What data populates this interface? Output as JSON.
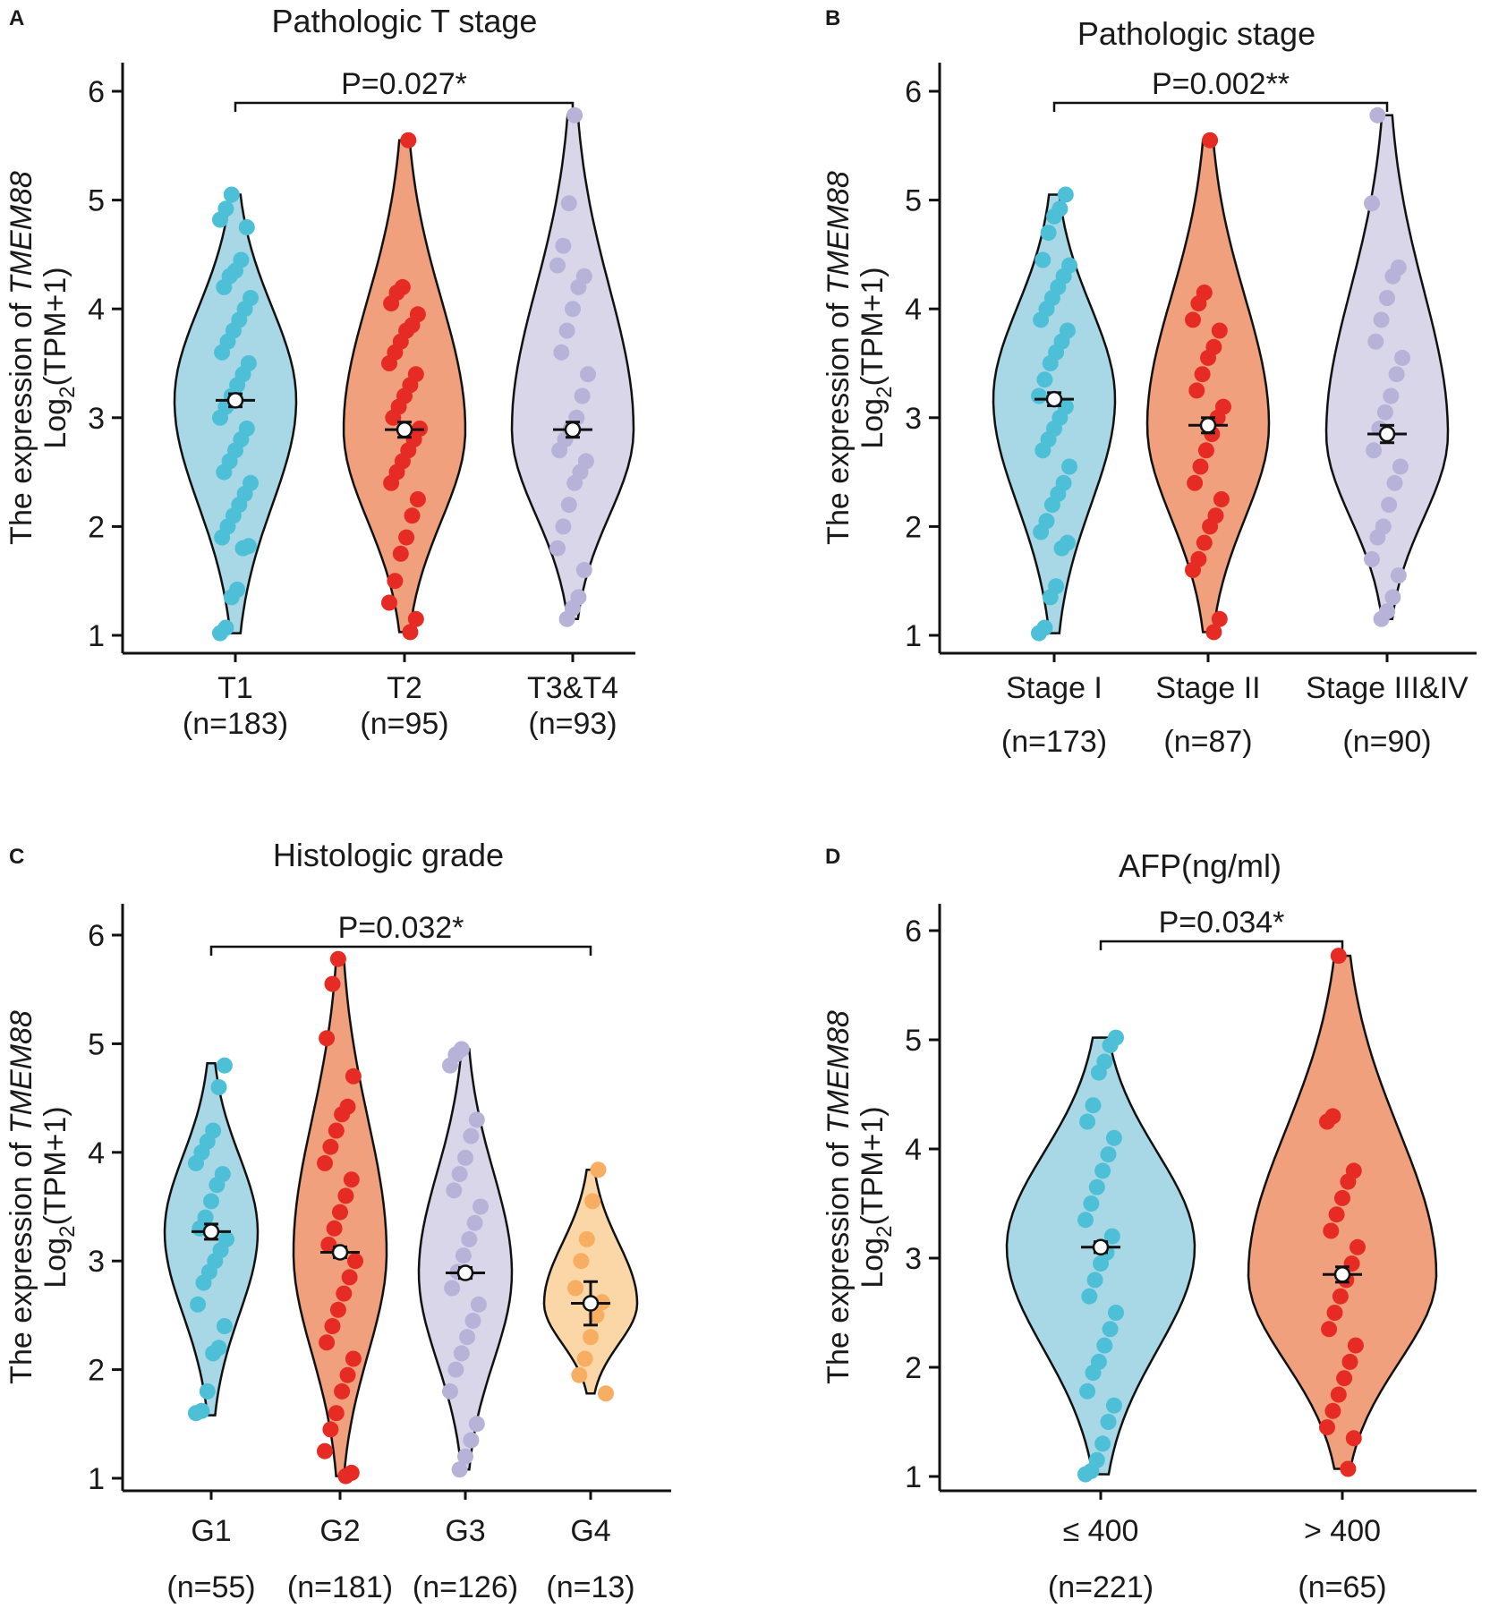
{
  "figure": {
    "y_axis": {
      "line1_prefix": "The expression of ",
      "gene": "TMEM88",
      "line2_prefix": "Log",
      "line2_sub": "2",
      "line2_suffix": "(TPM+1)"
    }
  },
  "chart_data": [
    {
      "type": "violin",
      "panel_label": "A",
      "title": "Pathologic T stage",
      "p_label": "P=0.027*",
      "p_span": [
        0,
        2
      ],
      "y_ticks": [
        1,
        2,
        3,
        4,
        5,
        6
      ],
      "ylim": [
        0.95,
        6.3
      ],
      "groups": [
        {
          "label": "T1",
          "n_label": "(n=183)",
          "color": "#a8d7e6",
          "point_color": "#4dc0d8",
          "min": 1.02,
          "max": 5.05,
          "mean": 3.16,
          "err": 0.06,
          "points": [
            1.02,
            1.07,
            1.35,
            1.42,
            1.8,
            1.82,
            1.9,
            2.0,
            2.1,
            2.2,
            2.3,
            2.4,
            2.5,
            2.6,
            2.7,
            2.8,
            2.9,
            3.0,
            3.1,
            3.2,
            3.3,
            3.4,
            3.5,
            3.6,
            3.7,
            3.8,
            3.9,
            4.0,
            4.1,
            4.2,
            4.3,
            4.35,
            4.45,
            4.75,
            4.82,
            4.92,
            5.05
          ]
        },
        {
          "label": "T2",
          "n_label": "(n=95)",
          "color": "#f0a07c",
          "point_color": "#e62b25",
          "min": 1.03,
          "max": 5.55,
          "mean": 2.89,
          "err": 0.07,
          "points": [
            1.03,
            1.15,
            1.3,
            1.5,
            1.75,
            1.9,
            2.1,
            2.25,
            2.4,
            2.5,
            2.6,
            2.7,
            2.8,
            2.9,
            3.0,
            3.1,
            3.2,
            3.3,
            3.4,
            3.5,
            3.6,
            3.7,
            3.8,
            3.85,
            3.95,
            4.05,
            4.15,
            4.2,
            5.55
          ]
        },
        {
          "label": "T3&T4",
          "n_label": "(n=93)",
          "color": "#d9d6ea",
          "point_color": "#b7b2d8",
          "min": 1.15,
          "max": 5.78,
          "mean": 2.89,
          "err": 0.07,
          "points": [
            1.15,
            1.25,
            1.35,
            1.6,
            1.8,
            2.0,
            2.2,
            2.4,
            2.5,
            2.6,
            2.7,
            2.8,
            2.9,
            3.0,
            3.2,
            3.4,
            3.6,
            3.8,
            4.0,
            4.2,
            4.3,
            4.4,
            4.58,
            4.97,
            5.78
          ]
        }
      ]
    },
    {
      "type": "violin",
      "panel_label": "B",
      "title": "Pathologic stage",
      "p_label": "P=0.002**",
      "p_span": [
        0,
        2
      ],
      "y_ticks": [
        1,
        2,
        3,
        4,
        5,
        6
      ],
      "ylim": [
        0.95,
        6.3
      ],
      "groups": [
        {
          "label": "Stage I",
          "n_label": "(n=173)",
          "color": "#a8d7e6",
          "point_color": "#4dc0d8",
          "min": 1.02,
          "max": 5.05,
          "mean": 3.17,
          "err": 0.06,
          "points": [
            1.02,
            1.07,
            1.35,
            1.45,
            1.8,
            1.85,
            1.95,
            2.05,
            2.2,
            2.3,
            2.4,
            2.55,
            2.7,
            2.8,
            2.9,
            3.0,
            3.1,
            3.2,
            3.35,
            3.5,
            3.6,
            3.7,
            3.8,
            3.9,
            4.0,
            4.1,
            4.2,
            4.3,
            4.4,
            4.45,
            4.7,
            4.85,
            4.92,
            5.05
          ]
        },
        {
          "label": "Stage II",
          "n_label": "(n=87)",
          "color": "#f0a07c",
          "point_color": "#e62b25",
          "min": 1.03,
          "max": 5.55,
          "mean": 2.93,
          "err": 0.07,
          "points": [
            1.03,
            1.15,
            1.6,
            1.7,
            1.85,
            2.0,
            2.1,
            2.25,
            2.4,
            2.55,
            2.7,
            2.85,
            3.0,
            3.1,
            3.25,
            3.4,
            3.55,
            3.65,
            3.8,
            3.9,
            4.05,
            4.15,
            5.55
          ]
        },
        {
          "label": "Stage III&IV",
          "n_label": "(n=90)",
          "color": "#d9d6ea",
          "point_color": "#b7b2d8",
          "min": 1.15,
          "max": 5.78,
          "mean": 2.85,
          "err": 0.08,
          "points": [
            1.15,
            1.22,
            1.35,
            1.55,
            1.7,
            1.9,
            2.0,
            2.2,
            2.4,
            2.55,
            2.7,
            2.9,
            3.05,
            3.2,
            3.4,
            3.55,
            3.7,
            3.9,
            4.1,
            4.3,
            4.38,
            4.97,
            5.78
          ]
        }
      ]
    },
    {
      "type": "violin",
      "panel_label": "C",
      "title": "Histologic grade",
      "p_label": "P=0.032*",
      "p_span": [
        0,
        3
      ],
      "y_ticks": [
        1,
        2,
        3,
        4,
        5,
        6
      ],
      "ylim": [
        0.95,
        6.3
      ],
      "groups": [
        {
          "label": "G1",
          "n_label": "(n=55)",
          "color": "#a8d7e6",
          "point_color": "#4dc0d8",
          "min": 1.58,
          "max": 4.82,
          "mean": 3.27,
          "err": 0.07,
          "points": [
            1.6,
            1.62,
            1.8,
            2.15,
            2.2,
            2.4,
            2.6,
            2.8,
            2.9,
            3.0,
            3.1,
            3.2,
            3.3,
            3.4,
            3.55,
            3.7,
            3.8,
            3.9,
            4.0,
            4.1,
            4.2,
            4.6,
            4.8
          ]
        },
        {
          "label": "G2",
          "n_label": "(n=181)",
          "color": "#f0a07c",
          "point_color": "#e62b25",
          "min": 1.02,
          "max": 5.78,
          "mean": 3.08,
          "err": 0.05,
          "points": [
            1.02,
            1.05,
            1.25,
            1.45,
            1.6,
            1.8,
            1.95,
            2.1,
            2.25,
            2.4,
            2.55,
            2.7,
            2.85,
            3.0,
            3.15,
            3.3,
            3.45,
            3.6,
            3.75,
            3.9,
            4.05,
            4.2,
            4.35,
            4.42,
            4.7,
            5.05,
            5.55,
            5.78
          ]
        },
        {
          "label": "G3",
          "n_label": "(n=126)",
          "color": "#d9d6ea",
          "point_color": "#b7b2d8",
          "min": 1.08,
          "max": 4.95,
          "mean": 2.89,
          "err": 0.05,
          "points": [
            1.08,
            1.2,
            1.35,
            1.5,
            1.8,
            2.0,
            2.15,
            2.3,
            2.45,
            2.6,
            2.75,
            2.9,
            3.05,
            3.2,
            3.35,
            3.5,
            3.65,
            3.8,
            3.95,
            4.15,
            4.3,
            4.8,
            4.9,
            4.95
          ]
        },
        {
          "label": "G4",
          "n_label": "(n=13)",
          "color": "#fbd7a8",
          "point_color": "#f7ad62",
          "min": 1.78,
          "max": 3.84,
          "mean": 2.61,
          "err": 0.2,
          "points": [
            1.78,
            1.95,
            2.1,
            2.3,
            2.5,
            2.62,
            2.75,
            3.0,
            3.2,
            3.55,
            3.84
          ]
        }
      ]
    },
    {
      "type": "violin",
      "panel_label": "D",
      "title": "AFP(ng/ml)",
      "p_label": "P=0.034*",
      "p_span": [
        0,
        1
      ],
      "y_ticks": [
        1,
        2,
        3,
        4,
        5,
        6
      ],
      "ylim": [
        0.95,
        6.3
      ],
      "groups": [
        {
          "label": "≤ 400",
          "n_label": "(n=221)",
          "color": "#a8d7e6",
          "point_color": "#4dc0d8",
          "min": 1.02,
          "max": 5.02,
          "mean": 3.1,
          "err": 0.05,
          "points": [
            1.02,
            1.05,
            1.15,
            1.3,
            1.5,
            1.65,
            1.78,
            1.95,
            2.05,
            2.2,
            2.35,
            2.5,
            2.65,
            2.8,
            2.95,
            3.05,
            3.2,
            3.35,
            3.5,
            3.65,
            3.8,
            3.95,
            4.1,
            4.25,
            4.4,
            4.7,
            4.8,
            4.95,
            5.02
          ]
        },
        {
          "label": "> 400",
          "n_label": "(n=65)",
          "color": "#f0a07c",
          "point_color": "#e62b25",
          "min": 1.07,
          "max": 5.77,
          "mean": 2.85,
          "err": 0.07,
          "points": [
            1.07,
            1.35,
            1.45,
            1.6,
            1.75,
            1.9,
            2.05,
            2.2,
            2.35,
            2.5,
            2.65,
            2.8,
            2.95,
            3.1,
            3.25,
            3.4,
            3.55,
            3.7,
            3.8,
            4.25,
            4.3,
            5.77
          ]
        }
      ]
    }
  ]
}
